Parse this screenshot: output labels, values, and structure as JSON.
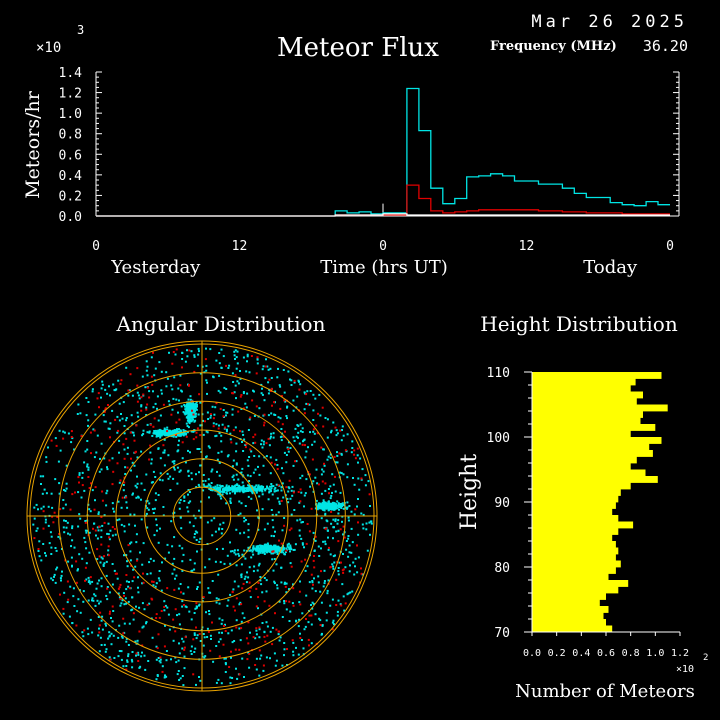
{
  "header": {
    "date": "Mar 26 2025",
    "freq_label": "Frequency (MHz)",
    "freq_value": "36.20",
    "title": "Meteor Flux",
    "multiplier": "×10",
    "multiplier_exp": "3"
  },
  "chart_data": [
    {
      "type": "line",
      "title": "Meteor Flux",
      "ylabel": "Meteors/hr",
      "xlabel": "Time (hrs UT)",
      "y_scale_note": "×10^3",
      "ylim": [
        0,
        1.4
      ],
      "y_ticks": [
        "0.0",
        "0.2",
        "0.4",
        "0.6",
        "0.8",
        "1.0",
        "1.2",
        "1.4"
      ],
      "x_range_hours": [
        -24,
        24
      ],
      "x_ticks": [
        {
          "h": -24,
          "label": "0"
        },
        {
          "h": -12,
          "label": "12"
        },
        {
          "h": 0,
          "label": "0"
        },
        {
          "h": 12,
          "label": "12"
        },
        {
          "h": 24,
          "label": "0"
        }
      ],
      "day_labels": [
        {
          "h": -19,
          "label": "Yesterday"
        },
        {
          "h": 19,
          "label": "Today"
        }
      ],
      "x_hours": [
        -24,
        -23,
        -22,
        -21,
        -20,
        -19,
        -18,
        -17,
        -16,
        -15,
        -14,
        -13,
        -12,
        -11,
        -10,
        -9,
        -8,
        -7,
        -6,
        -5,
        -4,
        -3,
        -2,
        -1,
        0,
        1,
        2,
        3,
        4,
        5,
        6,
        7,
        8,
        9,
        10,
        11,
        12,
        13,
        14,
        15,
        16,
        17,
        18,
        19,
        20,
        21,
        22,
        23
      ],
      "series": [
        {
          "color": "#00e5e5",
          "values": [
            0,
            0,
            0,
            0,
            0,
            0,
            0,
            0,
            0,
            0,
            0,
            0,
            0,
            0,
            0,
            0,
            0,
            0,
            0,
            0,
            0.05,
            0.03,
            0.04,
            0.02,
            0.03,
            0.03,
            1.24,
            0.83,
            0.27,
            0.12,
            0.17,
            0.38,
            0.39,
            0.41,
            0.39,
            0.34,
            0.34,
            0.31,
            0.31,
            0.27,
            0.22,
            0.18,
            0.18,
            0.13,
            0.11,
            0.1,
            0.14,
            0.11
          ]
        },
        {
          "color": "#e00000",
          "values": [
            0,
            0,
            0,
            0,
            0,
            0,
            0,
            0,
            0,
            0,
            0,
            0,
            0,
            0,
            0,
            0,
            0,
            0,
            0,
            0,
            0.01,
            0.01,
            0.01,
            0.01,
            0.01,
            0.01,
            0.3,
            0.17,
            0.05,
            0.03,
            0.04,
            0.05,
            0.06,
            0.06,
            0.06,
            0.06,
            0.06,
            0.05,
            0.05,
            0.04,
            0.04,
            0.03,
            0.03,
            0.03,
            0.02,
            0.02,
            0.02,
            0.02
          ]
        },
        {
          "color": "#ffffff",
          "values": [
            0,
            0,
            0,
            0,
            0,
            0,
            0,
            0,
            0,
            0,
            0,
            0,
            0,
            0,
            0,
            0,
            0,
            0,
            0,
            0,
            0.01,
            0.01,
            0.01,
            0.01,
            0.02,
            0.02,
            0.01,
            0.01,
            0.01,
            0.01,
            0.01,
            0.01,
            0.01,
            0.01,
            0.01,
            0.01,
            0.01,
            0.01,
            0.01,
            0.01,
            0.01,
            0.01,
            0.01,
            0.01,
            0.01,
            0.01,
            0.01,
            0.01
          ]
        }
      ],
      "grid": false
    },
    {
      "type": "scatter",
      "title": "Angular Distribution",
      "polar": true,
      "rings": 6,
      "grid": true,
      "colors": {
        "ring": "#e8a200",
        "axis": "#e8a200",
        "points_a": "#00e5e5",
        "points_b": "#e00000"
      }
    },
    {
      "type": "bar",
      "orientation": "horizontal",
      "title": "Height Distribution",
      "ylabel": "Height",
      "xlabel": "Number of Meteors",
      "x_scale_note": "×10^2",
      "ylim": [
        70,
        110
      ],
      "y_ticks": [
        "70",
        "80",
        "90",
        "100",
        "110"
      ],
      "xlim": [
        0,
        1.2
      ],
      "x_ticks": [
        "0.0",
        "0.2",
        "0.4",
        "0.6",
        "0.8",
        "1.0",
        "1.2"
      ],
      "bar_color": "#ffff00",
      "heights": [
        110,
        109,
        108,
        107,
        106,
        105,
        104,
        103,
        102,
        101,
        100,
        99,
        98,
        97,
        96,
        95,
        94,
        93,
        92,
        91,
        90,
        89,
        88,
        87,
        86,
        85,
        84,
        83,
        82,
        81,
        80,
        79,
        78,
        77,
        76,
        75,
        74,
        73,
        72,
        71
      ],
      "values": [
        1.05,
        0.84,
        0.8,
        0.9,
        0.85,
        1.1,
        0.9,
        0.88,
        1.0,
        0.8,
        1.05,
        0.95,
        0.98,
        0.85,
        0.8,
        0.92,
        1.02,
        0.8,
        0.72,
        0.7,
        0.68,
        0.65,
        0.7,
        0.82,
        0.7,
        0.65,
        0.68,
        0.7,
        0.68,
        0.72,
        0.68,
        0.62,
        0.78,
        0.7,
        0.6,
        0.55,
        0.62,
        0.58,
        0.6,
        0.65
      ]
    }
  ]
}
